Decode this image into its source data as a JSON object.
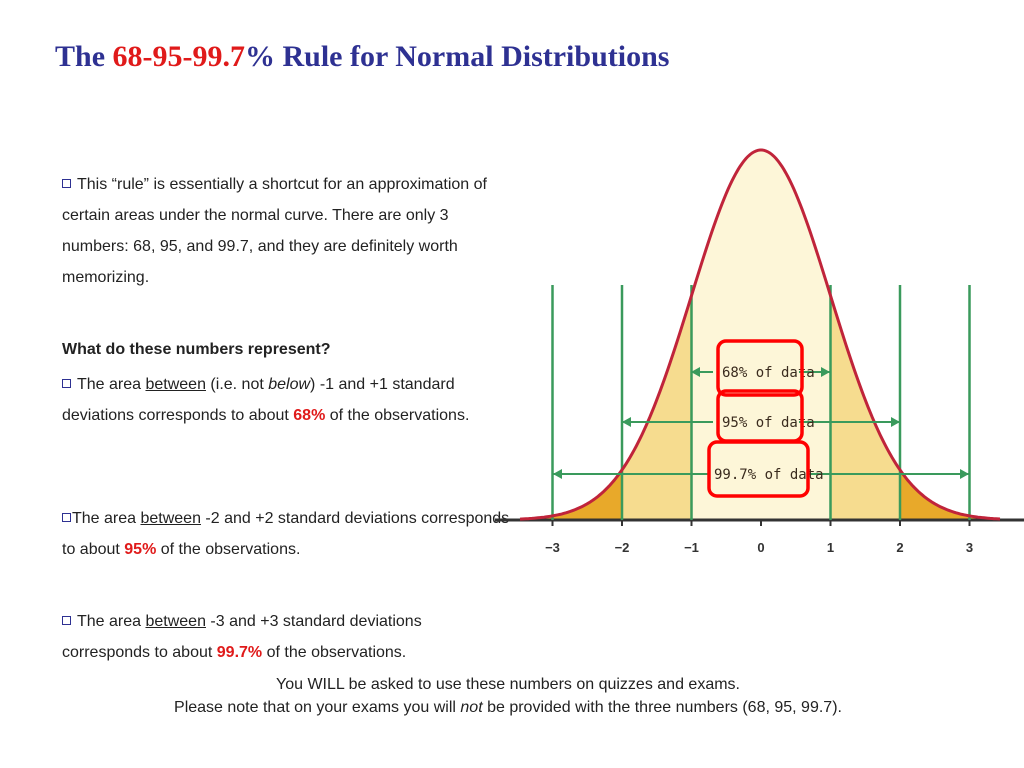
{
  "title": {
    "prefix": "The ",
    "highlight": "68-95-99.7",
    "suffix": "% Rule for Normal Distributions"
  },
  "intro": {
    "text": "This “rule” is essentially a shortcut for an approximation of certain areas under the normal curve. There are only 3 numbers: 68, 95, and 99.7, and they are definitely worth memorizing."
  },
  "question": "What do these numbers represent?",
  "bullet1": {
    "pre": "The area ",
    "between": "between",
    "paren_open": " (i.e. not ",
    "below": "below",
    "paren_close": ") -1 and +1 standard deviations corresponds to about ",
    "pct": "68%",
    "post": " of the observations."
  },
  "bullet2": {
    "pre": "The area ",
    "between": "between",
    "mid": " -2 and +2 standard deviations corresponds to about ",
    "pct": "95%",
    "post": " of the observations."
  },
  "bullet3": {
    "pre": "The area ",
    "between": "between",
    "mid": " -3 and +3 standard deviations corresponds to about ",
    "pct": "99.7%",
    "post": " of the observations."
  },
  "footer": {
    "line1": "You WILL be asked to use these numbers on quizzes and exams.",
    "line2_pre": "Please note that on your exams you will ",
    "line2_not": "not",
    "line2_post": " be provided with the three numbers (68, 95, 99.7)."
  },
  "figure": {
    "tick_labels": [
      "−3",
      "−2",
      "−1",
      "0",
      "1",
      "2",
      "3"
    ],
    "label_68": "68% of data",
    "label_95": "95% of data",
    "label_997": "99.7% of data",
    "colors": {
      "curve": "#c0243a",
      "inner": "#fdf6d8",
      "middle": "#f6dc8f",
      "outer": "#e8a92a",
      "lines": "#3a9a5c",
      "box": "#ff0000"
    }
  }
}
